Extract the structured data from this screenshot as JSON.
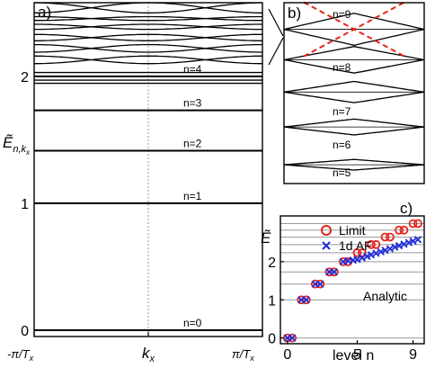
{
  "chart_data": [
    {
      "panel_label": "a)",
      "type": "line",
      "xlabel": "k",
      "xlabel_sub": "x",
      "ylabel": "Ẽ",
      "ylabel_sub": "n,k",
      "ylabel_subsub": "x",
      "xticks": [
        {
          "label": "-π/T",
          "sub": "x"
        },
        {
          "label": "k",
          "sub": "x"
        },
        {
          "label": "π/T",
          "sub": "x"
        }
      ],
      "yticks": [
        "0",
        "1",
        "2"
      ],
      "ylim": [
        -0.05,
        2.58
      ],
      "flat_levels": [
        {
          "label": "n=0",
          "e": 0.0
        },
        {
          "label": "n=1",
          "e": 1.0
        },
        {
          "label": "n=2",
          "e": 1.414
        },
        {
          "label": "n=3",
          "e": 1.732
        },
        {
          "label": "n=4",
          "e": 2.0
        }
      ],
      "n4_sublevels": [
        1.945,
        1.97,
        2.0,
        2.03
      ],
      "upper_bands": [
        {
          "e_edge": 2.1,
          "e_mid": 2.16
        },
        {
          "e_edge": 2.16,
          "e_mid": 2.1
        },
        {
          "e_edge": 2.19,
          "e_mid": 2.25
        },
        {
          "e_edge": 2.25,
          "e_mid": 2.19
        },
        {
          "e_edge": 2.28,
          "e_mid": 2.33
        },
        {
          "e_edge": 2.33,
          "e_mid": 2.28
        },
        {
          "e_edge": 2.37,
          "e_mid": 2.41
        },
        {
          "e_edge": 2.41,
          "e_mid": 2.37
        },
        {
          "e_edge": 2.44,
          "e_mid": 2.47
        },
        {
          "e_edge": 2.47,
          "e_mid": 2.44
        },
        {
          "e_edge": 2.5,
          "e_mid": 2.58
        },
        {
          "e_edge": 2.58,
          "e_mid": 2.5
        }
      ]
    },
    {
      "panel_label": "b)",
      "type": "line",
      "annotations": [
        "n=9",
        "n=8",
        "n=7",
        "n=6",
        "n=5"
      ],
      "levels": [
        {
          "label": "n=5",
          "e_edge": 2.236,
          "half_width": 0.03
        },
        {
          "label": "n=6",
          "e_edge": 2.449,
          "half_width": 0.045
        },
        {
          "label": "n=7",
          "e_edge": 2.646,
          "half_width": 0.06
        },
        {
          "label": "n=8",
          "e_edge": 2.828,
          "half_width": 0.075
        },
        {
          "label": "n=9",
          "e_edge": 3.0,
          "half_width": 0.09
        }
      ],
      "ylim": [
        2.13,
        3.15
      ],
      "dashed_color": "#e8231a"
    },
    {
      "panel_label": "c)",
      "type": "scatter",
      "xlabel": "level n",
      "ylabel": "Ẽ",
      "xticks": [
        "0",
        "5",
        "9"
      ],
      "yticks": [
        "0",
        "1",
        "2"
      ],
      "xlim": [
        -0.5,
        9.8
      ],
      "ylim": [
        -0.15,
        3.2
      ],
      "reference_line_label": "Analytic",
      "reference_lines": [
        0,
        1,
        1.414,
        1.732,
        2.0,
        2.236,
        2.449,
        2.646,
        2.828,
        3.0
      ],
      "series": [
        {
          "name": "Limit",
          "marker": "circle",
          "color": "#e8231a",
          "points": [
            [
              0,
              0.0
            ],
            [
              0.35,
              0.0
            ],
            [
              1,
              1.0
            ],
            [
              1.35,
              1.0
            ],
            [
              2,
              1.414
            ],
            [
              2.35,
              1.414
            ],
            [
              3,
              1.732
            ],
            [
              3.35,
              1.732
            ],
            [
              4,
              2.0
            ],
            [
              4.35,
              2.0
            ],
            [
              5,
              2.236
            ],
            [
              5.35,
              2.236
            ],
            [
              6,
              2.449
            ],
            [
              6.35,
              2.449
            ],
            [
              7,
              2.646
            ],
            [
              7.35,
              2.646
            ],
            [
              8,
              2.828
            ],
            [
              8.35,
              2.828
            ],
            [
              9,
              3.0
            ],
            [
              9.35,
              3.0
            ]
          ]
        },
        {
          "name": "1d AF",
          "marker": "x",
          "color": "#1f2cd6",
          "points": [
            [
              0,
              0.0
            ],
            [
              0.35,
              0.0
            ],
            [
              1,
              1.0
            ],
            [
              1.35,
              1.0
            ],
            [
              2,
              1.414
            ],
            [
              2.35,
              1.414
            ],
            [
              3,
              1.732
            ],
            [
              3.35,
              1.732
            ],
            [
              4,
              2.0
            ],
            [
              4.35,
              2.02
            ],
            [
              4.7,
              2.04
            ],
            [
              5,
              2.06
            ],
            [
              5.35,
              2.1
            ],
            [
              5.7,
              2.14
            ],
            [
              6,
              2.18
            ],
            [
              6.35,
              2.22
            ],
            [
              6.7,
              2.26
            ],
            [
              7,
              2.3
            ],
            [
              7.35,
              2.34
            ],
            [
              7.7,
              2.38
            ],
            [
              8,
              2.42
            ],
            [
              8.35,
              2.46
            ],
            [
              8.7,
              2.5
            ],
            [
              9,
              2.54
            ],
            [
              9.35,
              2.58
            ]
          ]
        }
      ]
    }
  ],
  "colors": {
    "axis": "#000000",
    "line": "#000000",
    "grid": "#999999",
    "red": "#e8231a",
    "blue": "#1f2cd6"
  }
}
